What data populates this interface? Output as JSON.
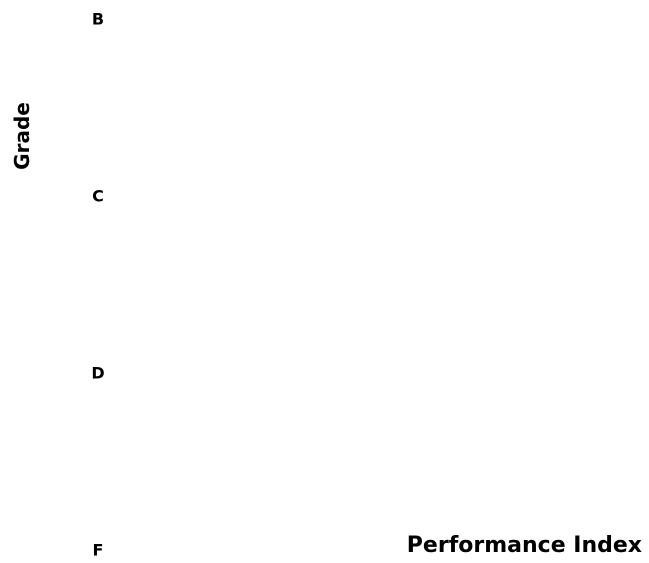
{
  "chart_data": {
    "type": "scatter",
    "title": "",
    "xlabel": "Performance Index",
    "ylabel": "Grade",
    "y_categories": [
      "B",
      "C",
      "D",
      "F"
    ],
    "series": [],
    "grid": false,
    "legend": "none"
  }
}
